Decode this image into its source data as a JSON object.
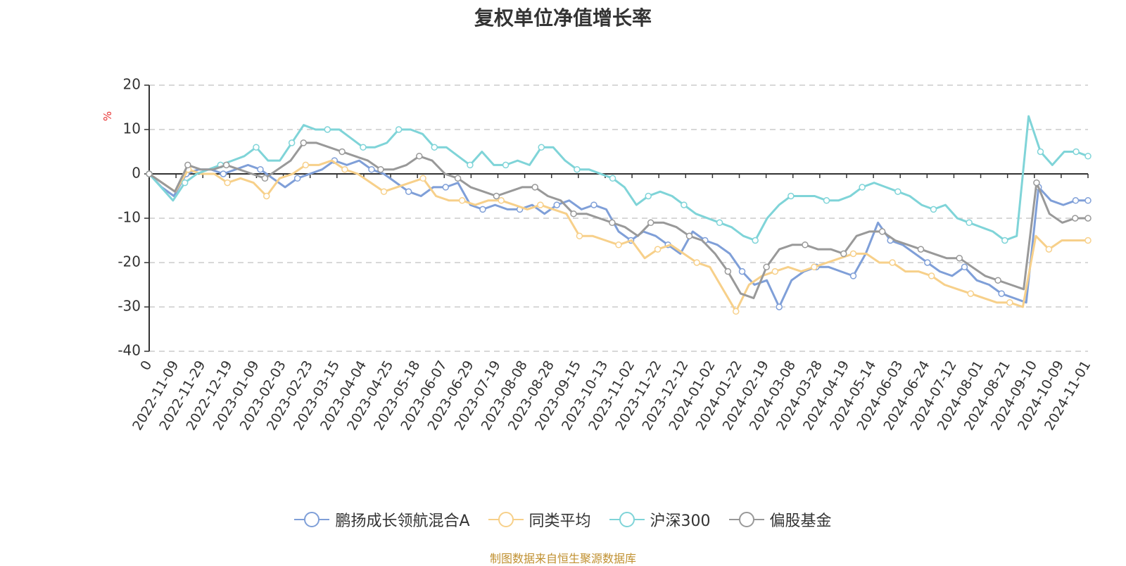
{
  "chart_data": {
    "type": "line",
    "title": "复权单位净值增长率",
    "ylabel": "%",
    "ylim": [
      -40,
      20
    ],
    "yticks": [
      20,
      10,
      0,
      -10,
      -20,
      -30,
      -40
    ],
    "xtick_labels": [
      "0",
      "2022-11-09",
      "2022-11-29",
      "2022-12-19",
      "2023-01-09",
      "2023-02-03",
      "2023-02-23",
      "2023-03-15",
      "2023-04-04",
      "2023-04-25",
      "2023-05-18",
      "2023-06-07",
      "2023-06-29",
      "2023-07-19",
      "2023-08-08",
      "2023-08-28",
      "2023-09-15",
      "2023-10-13",
      "2023-11-02",
      "2023-11-22",
      "2023-12-12",
      "2024-01-02",
      "2024-01-22",
      "2024-02-19",
      "2024-03-08",
      "2024-03-28",
      "2024-04-19",
      "2024-05-14",
      "2024-06-03",
      "2024-06-24",
      "2024-07-12",
      "2024-08-01",
      "2024-08-21",
      "2024-09-10",
      "2024-10-09",
      "2024-11-01"
    ],
    "grid": "horizontal dashed",
    "legend_position": "bottom",
    "series": [
      {
        "name": "鹏扬成长领航混合A",
        "color": "#7f9fd8",
        "values": [
          0,
          -3,
          -5,
          0,
          1,
          1,
          0,
          1,
          2,
          1,
          -1,
          -3,
          -1,
          0,
          1,
          3,
          2,
          3,
          1,
          0,
          -2,
          -4,
          -5,
          -3,
          -3,
          -2,
          -7,
          -8,
          -7,
          -8,
          -8,
          -7,
          -9,
          -7,
          -6,
          -8,
          -7,
          -8,
          -13,
          -15,
          -13,
          -14,
          -16,
          -18,
          -13,
          -15,
          -16,
          -18,
          -22,
          -25,
          -24,
          -30,
          -24,
          -22,
          -21,
          -21,
          -22,
          -23,
          -18,
          -11,
          -15,
          -16,
          -18,
          -20,
          -22,
          -23,
          -21,
          -24,
          -25,
          -27,
          -28,
          -29,
          -3,
          -6,
          -7,
          -6,
          -6
        ]
      },
      {
        "name": "同类平均",
        "color": "#f7d08a",
        "values": [
          0,
          -2,
          -4,
          1,
          0,
          0,
          -2,
          -1,
          -2,
          -5,
          -1,
          0,
          2,
          2,
          3,
          1,
          0,
          -2,
          -4,
          -3,
          -2,
          -1,
          -5,
          -6,
          -6,
          -7,
          -6,
          -6,
          -7,
          -8,
          -7,
          -8,
          -9,
          -14,
          -14,
          -15,
          -16,
          -15,
          -19,
          -17,
          -16,
          -18,
          -20,
          -21,
          -26,
          -31,
          -25,
          -23,
          -22,
          -21,
          -22,
          -21,
          -20,
          -19,
          -18,
          -18,
          -20,
          -20,
          -22,
          -22,
          -23,
          -25,
          -26,
          -27,
          -28,
          -29,
          -29,
          -30,
          -14,
          -17,
          -15,
          -15,
          -15
        ]
      },
      {
        "name": "沪深300",
        "color": "#7fd4d8",
        "values": [
          0,
          -3,
          -6,
          -2,
          0,
          1,
          2,
          3,
          4,
          6,
          3,
          3,
          7,
          11,
          10,
          10,
          10,
          8,
          6,
          6,
          7,
          10,
          10,
          9,
          6,
          6,
          4,
          2,
          5,
          2,
          2,
          3,
          2,
          6,
          6,
          3,
          1,
          1,
          0,
          -1,
          -3,
          -7,
          -5,
          -4,
          -5,
          -7,
          -9,
          -10,
          -11,
          -12,
          -14,
          -15,
          -10,
          -7,
          -5,
          -5,
          -5,
          -6,
          -6,
          -5,
          -3,
          -2,
          -3,
          -4,
          -5,
          -7,
          -8,
          -7,
          -10,
          -11,
          -12,
          -13,
          -15,
          -14,
          13,
          5,
          2,
          5,
          5,
          4
        ]
      },
      {
        "name": "偏股基金",
        "color": "#999999",
        "values": [
          0,
          -2,
          -4,
          2,
          1,
          1,
          2,
          1,
          0,
          -1,
          1,
          3,
          7,
          7,
          6,
          5,
          4,
          3,
          1,
          1,
          2,
          4,
          3,
          0,
          -1,
          -3,
          -4,
          -5,
          -4,
          -3,
          -3,
          -5,
          -6,
          -9,
          -9,
          -10,
          -11,
          -12,
          -14,
          -11,
          -11,
          -12,
          -14,
          -15,
          -18,
          -22,
          -27,
          -28,
          -21,
          -17,
          -16,
          -16,
          -17,
          -17,
          -18,
          -14,
          -13,
          -13,
          -15,
          -16,
          -17,
          -18,
          -19,
          -19,
          -21,
          -23,
          -24,
          -25,
          -26,
          -2,
          -9,
          -11,
          -10,
          -10
        ]
      }
    ]
  },
  "legend": {
    "items": [
      {
        "label": "鹏扬成长领航混合A",
        "color": "#7f9fd8"
      },
      {
        "label": "同类平均",
        "color": "#f7d08a"
      },
      {
        "label": "沪深300",
        "color": "#7fd4d8"
      },
      {
        "label": "偏股基金",
        "color": "#999999"
      }
    ]
  },
  "source": "制图数据来自恒生聚源数据库"
}
